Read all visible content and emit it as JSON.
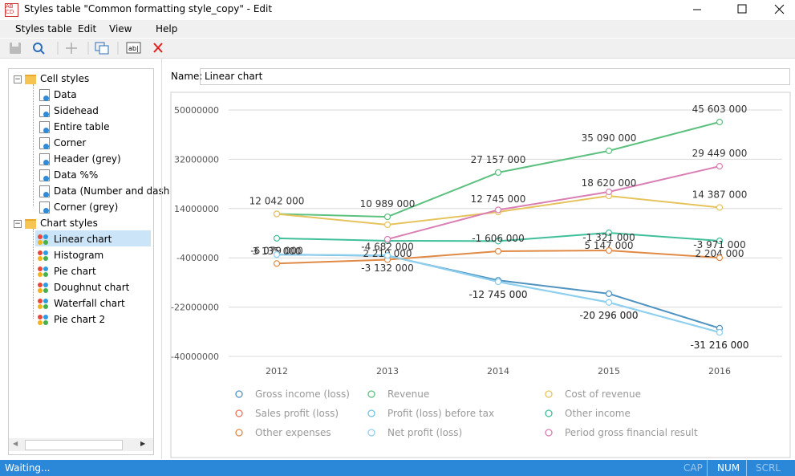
{
  "window": {
    "title": "Styles table \"Common formatting style_copy\" - Edit"
  },
  "menu": [
    "Styles table",
    "Edit",
    "View",
    "Help"
  ],
  "tree": {
    "cell_styles": {
      "label": "Cell styles",
      "items": [
        "Data",
        "Sidehead",
        "Entire table",
        "Corner",
        "Header (grey)",
        "Data %%",
        "Data (Number and dash",
        "Corner (grey)"
      ]
    },
    "chart_styles": {
      "label": "Chart styles",
      "items": [
        "Linear chart",
        "Histogram",
        "Pie chart",
        "Doughnut chart",
        "Waterfall chart",
        "Pie chart 2"
      ]
    }
  },
  "name_field": {
    "label": "Name:",
    "value": "Linear chart"
  },
  "status": {
    "text": "Waiting...",
    "cap": "CAP",
    "num": "NUM",
    "scrl": "SCRL"
  },
  "chart_data": {
    "type": "line",
    "categories": [
      "2012",
      "2013",
      "2014",
      "2015",
      "2016"
    ],
    "ylim": [
      -40000000,
      50000000
    ],
    "yticks": [
      50000000,
      32000000,
      14000000,
      -4000000,
      -22000000,
      -40000000
    ],
    "grid": true,
    "series": [
      {
        "name": "Gross income (loss)",
        "color": "#4f93c0",
        "values": [
          -2800000,
          -3300000,
          -12200000,
          -17100000,
          -29700000
        ]
      },
      {
        "name": "Revenue",
        "color": "#5cc07f",
        "values": [
          12042000,
          10989000,
          27157000,
          35090000,
          45603000
        ],
        "value_labels": [
          "12 042 000",
          "10 989 000",
          "27 157 000",
          "35 090 000",
          "45 603 000"
        ]
      },
      {
        "name": "Cost of revenue",
        "color": "#e6c35c",
        "values": [
          12042000,
          8080000,
          12745000,
          18620000,
          14387000
        ],
        "value_labels": [
          null,
          null,
          "12 745 000",
          "18 620 000",
          "14 387 000"
        ]
      },
      {
        "name": "Sales profit (loss)",
        "color": "#e8735a",
        "values": [
          null,
          null,
          null,
          null,
          null
        ]
      },
      {
        "name": "Profit (loss) before tax",
        "color": "#6ec3e8",
        "values": [
          -2800000,
          -3132000,
          -12745000,
          -20296000,
          -31216000
        ],
        "value_labels": [
          null,
          "-3 132 000",
          "-12 745 000",
          "-20 296 000",
          "-31 216 000"
        ]
      },
      {
        "name": "Other income",
        "color": "#3fbf9a",
        "values": [
          3135000,
          2219000,
          2100000,
          5147000,
          2204000
        ],
        "value_labels": [
          "3 135 000",
          "2 219 000",
          null,
          "5 147 000",
          "2 204 000"
        ]
      },
      {
        "name": "Other expenses",
        "color": "#e08a45",
        "values": [
          -6079000,
          -4682000,
          -1606000,
          -1321000,
          -3971000
        ],
        "value_labels": [
          "-6 079 000",
          "-4 682 000",
          "-1 606 000",
          "-1 321 000",
          "-3 971 000"
        ]
      },
      {
        "name": "Net profit (loss)",
        "color": "#8fd0ee",
        "values": [
          -2800000,
          -3132000,
          -12745000,
          -20296000,
          -31216000
        ],
        "value_labels": [
          null,
          null,
          "-12 745 000",
          "-20 296 000",
          "-31 216 000"
        ]
      },
      {
        "name": "Period gross financial result",
        "color": "#d97fb4",
        "values": [
          null,
          2800000,
          13500000,
          20100000,
          29449000
        ],
        "value_labels": [
          null,
          null,
          null,
          null,
          "29 449 000"
        ]
      }
    ]
  }
}
